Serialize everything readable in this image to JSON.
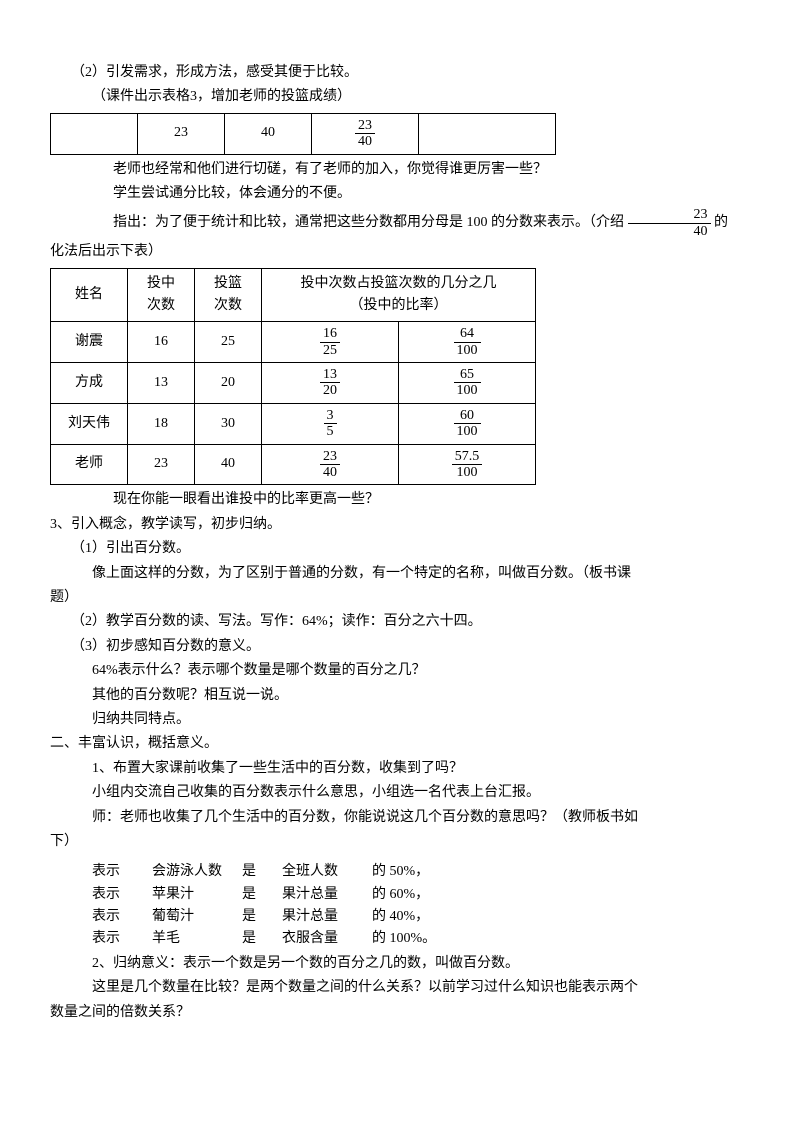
{
  "intro": {
    "line1": "（2）引发需求，形成方法，感受其便于比较。",
    "line2": "（课件出示表格3，增加老师的投篮成绩）"
  },
  "table1": {
    "c1": "",
    "c2": "23",
    "c3": "40",
    "c4_num": "23",
    "c4_den": "40",
    "c5": ""
  },
  "after_t1": {
    "line1": "老师也经常和他们进行切磋，有了老师的加入，你觉得谁更厉害一些？",
    "line2": "学生尝试通分比较，体会通分的不便。",
    "line3a": "指出：为了便于统计和比较，通常把这些分数都用分母是 100 的分数来表示。（介绍",
    "frac_num": "23",
    "frac_den": "40",
    "line3b": "的",
    "line4": "化法后出示下表）"
  },
  "table2": {
    "headers": {
      "h1a": "姓名",
      "h2a": "投中",
      "h2b": "次数",
      "h3a": "投篮",
      "h3b": "次数",
      "h4": "投中次数占投篮次数的几分之几",
      "h4b": "（投中的比率）"
    },
    "rows": [
      {
        "name": "谢震",
        "a": "16",
        "b": "25",
        "f1n": "16",
        "f1d": "25",
        "f2n": "64",
        "f2d": "100"
      },
      {
        "name": "方成",
        "a": "13",
        "b": "20",
        "f1n": "13",
        "f1d": "20",
        "f2n": "65",
        "f2d": "100"
      },
      {
        "name": "刘天伟",
        "a": "18",
        "b": "30",
        "f1n": "3",
        "f1d": "5",
        "f2n": "60",
        "f2d": "100"
      },
      {
        "name": "老师",
        "a": "23",
        "b": "40",
        "f1n": "23",
        "f1d": "40",
        "f2n": "57.5",
        "f2d": "100"
      }
    ]
  },
  "body": {
    "b1": "现在你能一眼看出谁投中的比率更高一些？",
    "b2": "3、引入概念，教学读写，初步归纳。",
    "b3": "（1）引出百分数。",
    "b4": "像上面这样的分数，为了区别于普通的分数，有一个特定的名称，叫做百分数。（板书课",
    "b4b": "题）",
    "b5": "（2）教学百分数的读、写法。写作：64%；读作：百分之六十四。",
    "b6": "（3）初步感知百分数的意义。",
    "b7": "64%表示什么？表示哪个数量是哪个数量的百分之几？",
    "b8": "其他的百分数呢？相互说一说。",
    "b9": "归纳共同特点。",
    "b10": "二、丰富认识，概括意义。",
    "b11": "1、布置大家课前收集了一些生活中的百分数，收集到了吗？",
    "b12": "小组内交流自己收集的百分数表示什么意思，小组选一名代表上台汇报。",
    "b13": "师：老师也收集了几个生活中的百分数，你能说说这几个百分数的意思吗？（教师板书如",
    "b13b": "下）"
  },
  "rows_lines": [
    {
      "a": "表示",
      "b": "会游泳人数",
      "c": "是",
      "d": "全班人数",
      "e": "的 50%，"
    },
    {
      "a": "表示",
      "b": "苹果汁",
      "c": "是",
      "d": "果汁总量",
      "e": "的 60%，"
    },
    {
      "a": "表示",
      "b": "葡萄汁",
      "c": "是",
      "d": "果汁总量",
      "e": "的 40%，"
    },
    {
      "a": "表示",
      "b": "羊毛",
      "c": "是",
      "d": "衣服含量",
      "e": "的 100%。"
    }
  ],
  "tail": {
    "t1": "2、归纳意义：表示一个数是另一个数的百分之几的数，叫做百分数。",
    "t2": "这里是几个数量在比较？是两个数量之间的什么关系？以前学习过什么知识也能表示两个",
    "t3": "数量之间的倍数关系？"
  }
}
